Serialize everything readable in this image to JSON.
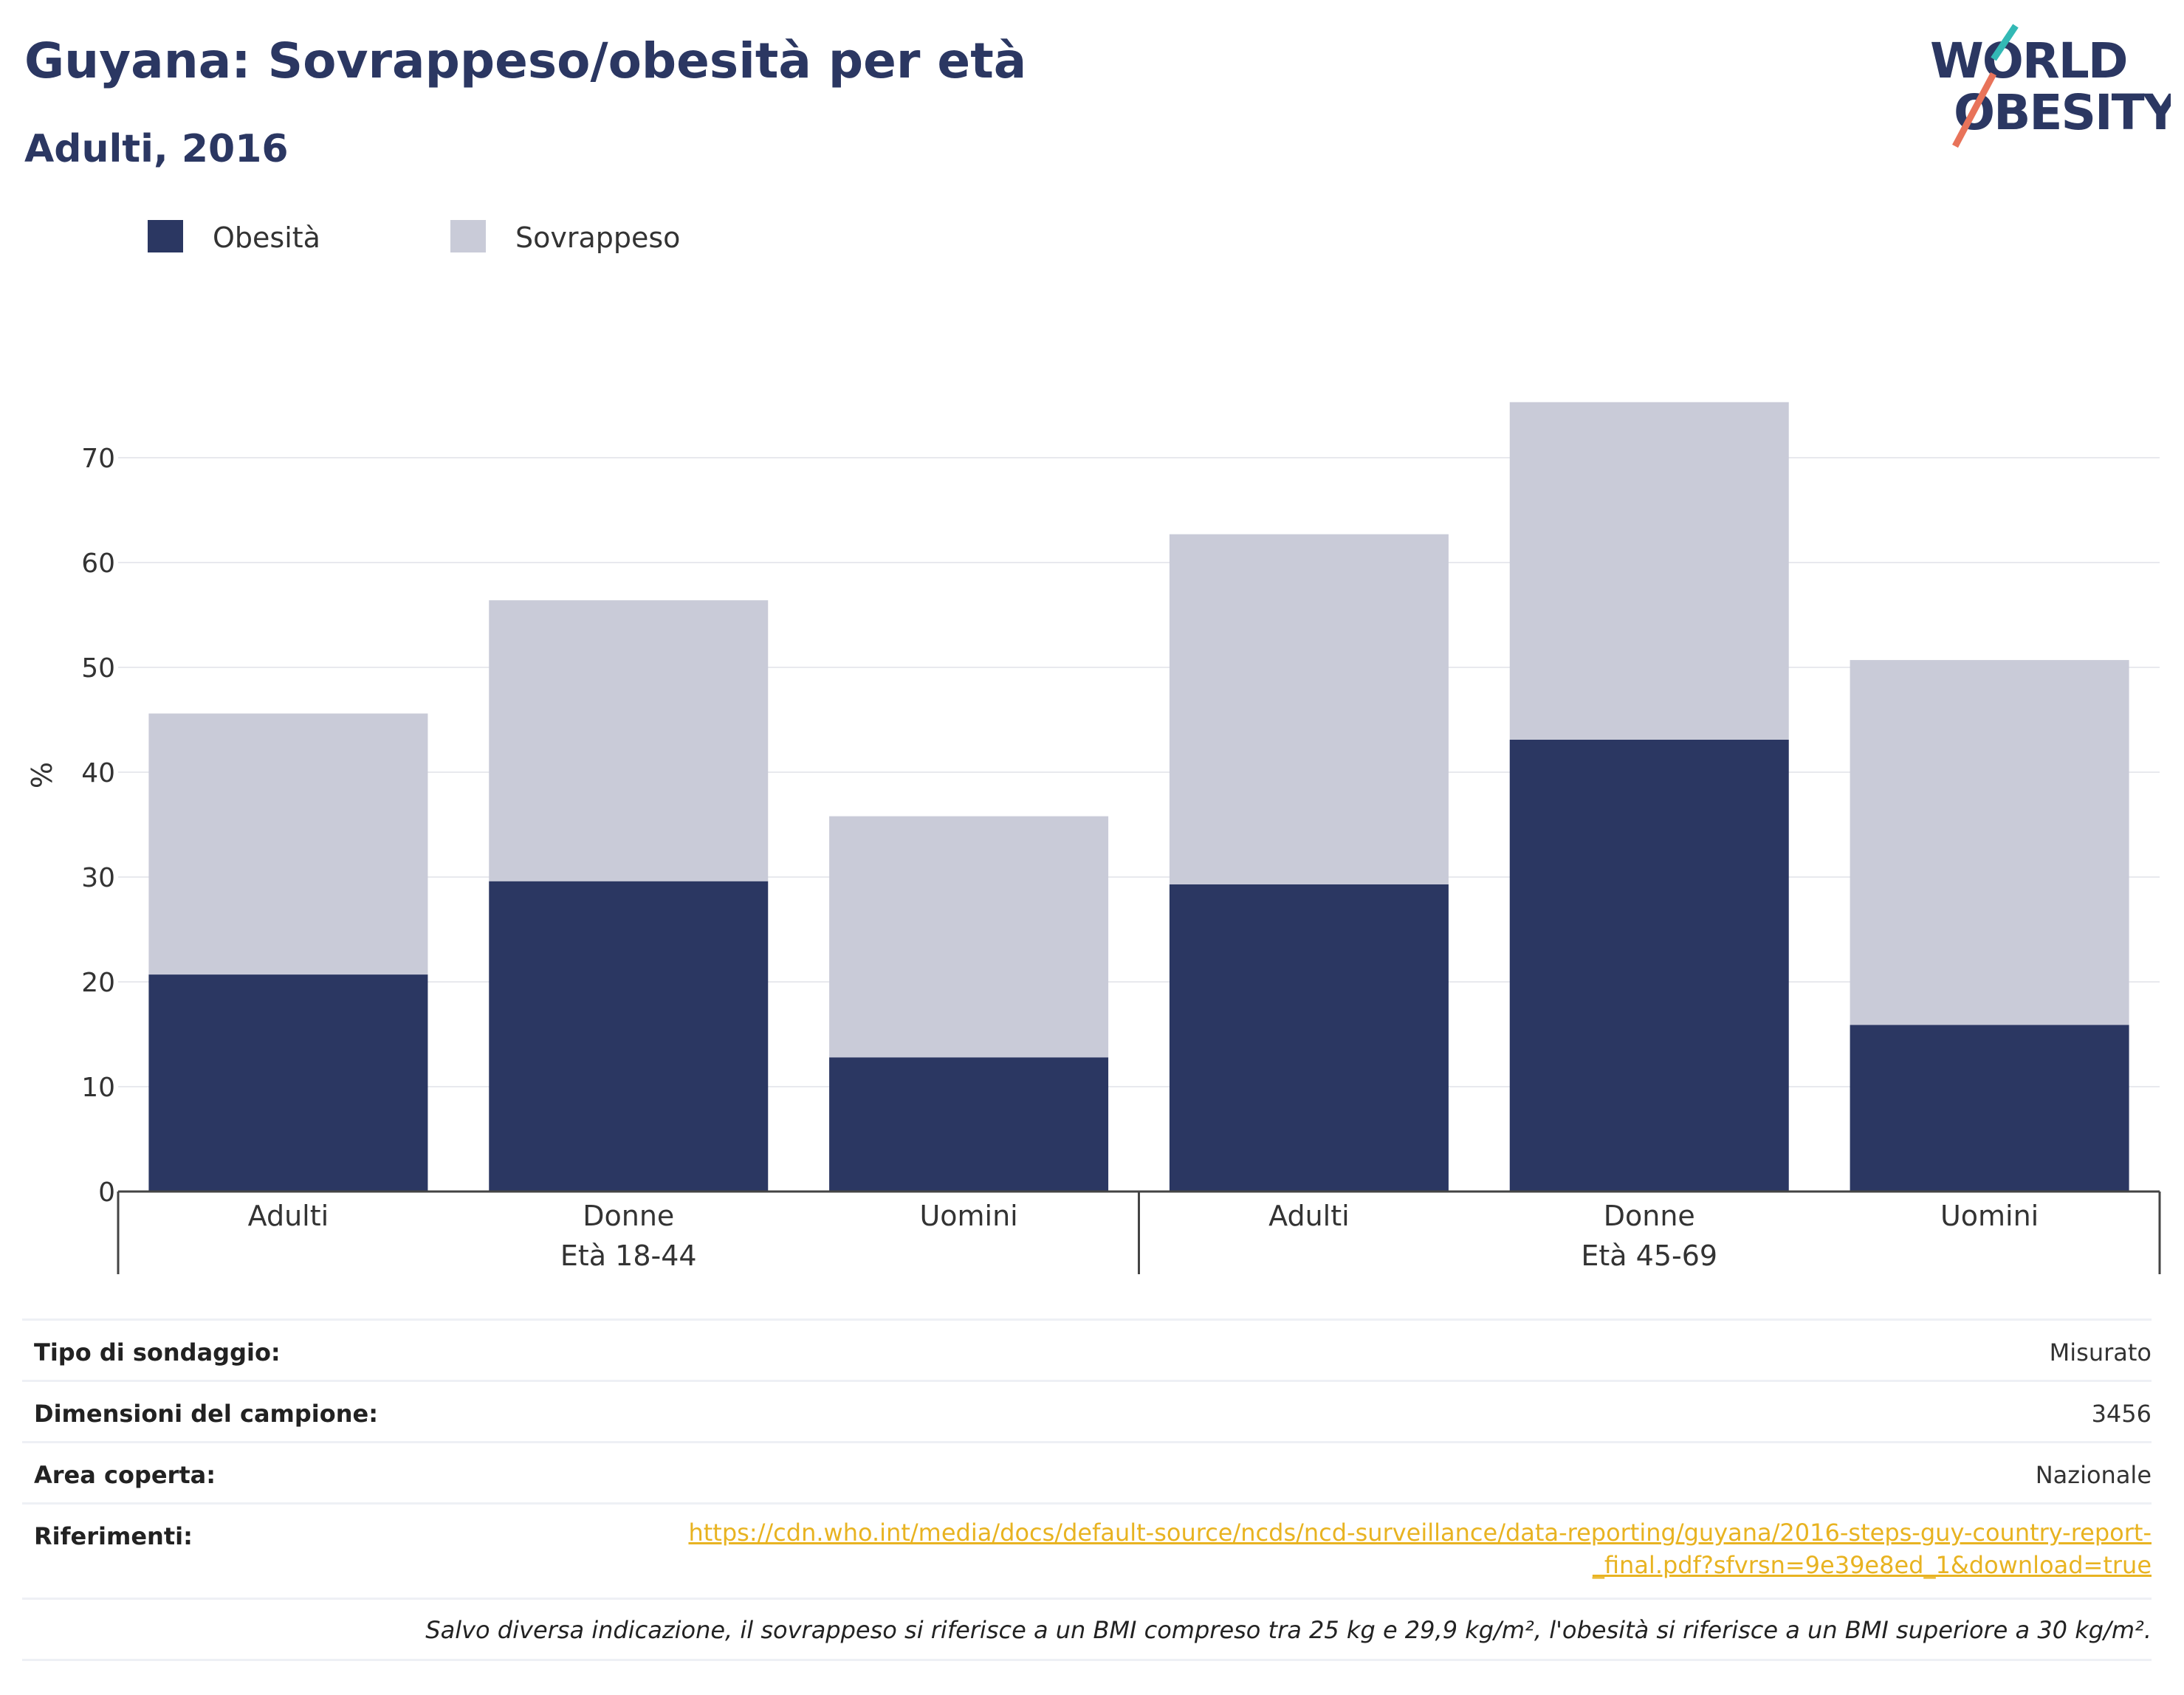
{
  "header": {
    "title": "Guyana: Sovrappeso/obesità per età",
    "subtitle": "Adulti, 2016",
    "logo_text": "WORLD OBESITY"
  },
  "legend": {
    "items": [
      {
        "label": "Obesità",
        "color": "#2b3762"
      },
      {
        "label": "Sovrappeso",
        "color": "#c9cbd8"
      }
    ]
  },
  "chart_data": {
    "type": "bar",
    "stacked": true,
    "ylabel": "%",
    "ylim": [
      0,
      78
    ],
    "yticks": [
      0,
      10,
      20,
      30,
      40,
      50,
      60,
      70
    ],
    "grid": true,
    "legend_position": "top-left",
    "categories": [
      "Adulti",
      "Donne",
      "Uomini",
      "Adulti",
      "Donne",
      "Uomini"
    ],
    "groups": [
      {
        "label": "Età 18-44",
        "categories": [
          "Adulti",
          "Donne",
          "Uomini"
        ]
      },
      {
        "label": "Età 45-69",
        "categories": [
          "Adulti",
          "Donne",
          "Uomini"
        ]
      }
    ],
    "series": [
      {
        "name": "Obesità",
        "color": "#2b3762",
        "values": [
          20.7,
          29.6,
          12.8,
          29.3,
          43.1,
          15.9
        ]
      },
      {
        "name": "Sovrappeso",
        "color": "#c9cbd8",
        "values": [
          24.9,
          26.8,
          23.0,
          33.4,
          32.2,
          34.8
        ]
      }
    ]
  },
  "info": {
    "rows": [
      {
        "key": "Tipo di sondaggio:",
        "value": "Misurato"
      },
      {
        "key": "Dimensioni del campione:",
        "value": "3456"
      },
      {
        "key": "Area coperta:",
        "value": "Nazionale"
      }
    ],
    "references_key": "Riferimenti:",
    "references_link_line1": "https://cdn.who.int/media/docs/default-source/ncds/ncd-surveillance/data-reporting/guyana/2016-steps-guy-country-report-",
    "references_link_line2": "_final.pdf?sfvrsn=9e39e8ed_1&download=true",
    "note": "Salvo diversa indicazione, il sovrappeso si riferisce a un BMI compreso tra 25 kg e 29,9 kg/m², l'obesità si riferisce a un BMI superiore a 30 kg/m²."
  }
}
